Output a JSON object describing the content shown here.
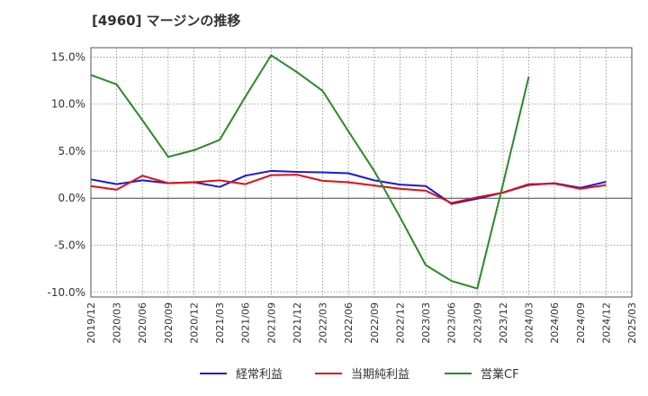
{
  "chart_data": {
    "type": "line",
    "title": "[4960]  マージンの推移",
    "x": [
      "2019/12",
      "2020/03",
      "2020/06",
      "2020/09",
      "2020/12",
      "2021/03",
      "2021/06",
      "2021/09",
      "2021/12",
      "2022/03",
      "2022/06",
      "2022/09",
      "2022/12",
      "2023/03",
      "2023/06",
      "2023/09",
      "2023/12",
      "2024/03",
      "2024/06",
      "2024/09",
      "2024/12",
      "2025/03"
    ],
    "ylim": [
      -10.5,
      16.0
    ],
    "yticks": [
      15.0,
      10.0,
      5.0,
      0.0,
      -5.0,
      -10.0
    ],
    "ytick_labels": [
      "15.0%",
      "10.0%",
      "5.0%",
      "0.0%",
      "-5.0%",
      "-10.0%"
    ],
    "grid": true,
    "legend_position": "bottom",
    "series": [
      {
        "name": "経常利益",
        "color": "#1a1adc",
        "values": [
          2.0,
          1.5,
          1.9,
          1.6,
          1.7,
          1.2,
          2.4,
          2.9,
          2.8,
          2.75,
          2.65,
          1.9,
          1.45,
          1.3,
          -0.6,
          -0.05,
          0.6,
          1.4,
          1.6,
          1.1,
          1.75,
          null
        ]
      },
      {
        "name": "当期純利益",
        "color": "#e01010",
        "values": [
          1.3,
          0.9,
          2.4,
          1.6,
          1.7,
          1.9,
          1.5,
          2.45,
          2.5,
          1.85,
          1.7,
          1.35,
          1.0,
          0.8,
          -0.5,
          0.1,
          0.6,
          1.5,
          1.55,
          1.0,
          1.4,
          null
        ]
      },
      {
        "name": "営業CF",
        "color": "#2a8a2a",
        "values": [
          13.1,
          12.1,
          8.3,
          4.4,
          5.1,
          6.2,
          10.8,
          15.2,
          13.4,
          11.4,
          7.1,
          2.9,
          -2.0,
          -7.1,
          -8.8,
          -9.6,
          1.5,
          12.9,
          null,
          null,
          null,
          null
        ]
      }
    ]
  }
}
